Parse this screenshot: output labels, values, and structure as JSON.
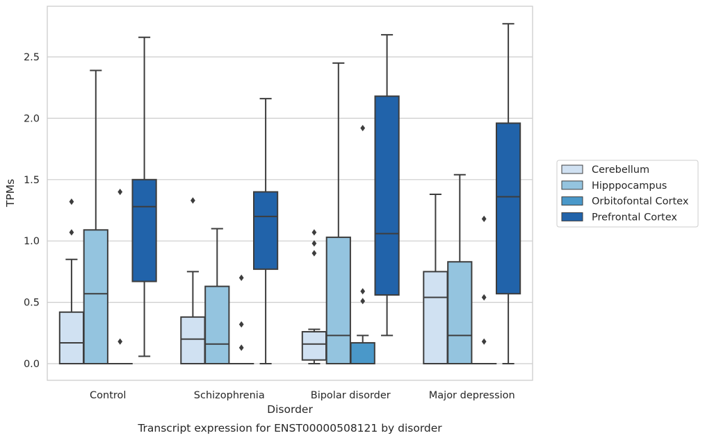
{
  "caption": "Transcript expression for ENST00000508121 by disorder",
  "chart_data": {
    "type": "box",
    "xlabel": "Disorder",
    "ylabel": "TPMs",
    "ylim": [
      -0.13,
      2.92
    ],
    "yticks": [
      0.0,
      0.5,
      1.0,
      1.5,
      2.0,
      2.5
    ],
    "ytick_labels": [
      "0.0",
      "0.5",
      "1.0",
      "1.5",
      "2.0",
      "2.5"
    ],
    "grid": "horizontal",
    "legend_position": "right",
    "categories": [
      "Control",
      "Schizophrenia",
      "Bipolar disorder",
      "Major depression"
    ],
    "series": [
      {
        "name": "Cerebellum",
        "color": "#d0e1f2",
        "boxes": [
          {
            "whislo": 0.0,
            "q1": 0.0,
            "med": 0.17,
            "q3": 0.42,
            "whishi": 0.85,
            "fliers": [
              1.07,
              1.32
            ]
          },
          {
            "whislo": 0.0,
            "q1": 0.0,
            "med": 0.2,
            "q3": 0.38,
            "whishi": 0.75,
            "fliers": [
              1.33
            ]
          },
          {
            "whislo": 0.0,
            "q1": 0.03,
            "med": 0.16,
            "q3": 0.26,
            "whishi": 0.28,
            "fliers": [
              0.9,
              0.98,
              1.07
            ]
          },
          {
            "whislo": 0.0,
            "q1": 0.0,
            "med": 0.54,
            "q3": 0.75,
            "whishi": 1.38,
            "fliers": []
          }
        ]
      },
      {
        "name": "Hipppocampus",
        "color": "#94c4df",
        "boxes": [
          {
            "whislo": 0.0,
            "q1": 0.0,
            "med": 0.57,
            "q3": 1.09,
            "whishi": 2.39,
            "fliers": []
          },
          {
            "whislo": 0.0,
            "q1": 0.0,
            "med": 0.16,
            "q3": 0.63,
            "whishi": 1.1,
            "fliers": []
          },
          {
            "whislo": 0.0,
            "q1": 0.0,
            "med": 0.23,
            "q3": 1.03,
            "whishi": 2.45,
            "fliers": []
          },
          {
            "whislo": 0.0,
            "q1": 0.0,
            "med": 0.23,
            "q3": 0.83,
            "whishi": 1.54,
            "fliers": []
          }
        ]
      },
      {
        "name": "Orbitofontal Cortex",
        "color": "#4a98c9",
        "boxes": [
          {
            "whislo": 0.0,
            "q1": 0.0,
            "med": 0.0,
            "q3": 0.0,
            "whishi": 0.0,
            "fliers": [
              0.18,
              1.4
            ]
          },
          {
            "whislo": 0.0,
            "q1": 0.0,
            "med": 0.0,
            "q3": 0.0,
            "whishi": 0.0,
            "fliers": [
              0.13,
              0.32,
              0.7
            ]
          },
          {
            "whislo": 0.0,
            "q1": 0.0,
            "med": 0.0,
            "q3": 0.17,
            "whishi": 0.23,
            "fliers": [
              0.51,
              0.59,
              1.92
            ]
          },
          {
            "whislo": 0.0,
            "q1": 0.0,
            "med": 0.0,
            "q3": 0.0,
            "whishi": 0.0,
            "fliers": [
              0.18,
              0.54,
              1.18
            ]
          }
        ]
      },
      {
        "name": "Prefrontal Cortex",
        "color": "#2163aa",
        "boxes": [
          {
            "whislo": 0.06,
            "q1": 0.67,
            "med": 1.28,
            "q3": 1.5,
            "whishi": 2.66,
            "fliers": []
          },
          {
            "whislo": 0.0,
            "q1": 0.77,
            "med": 1.2,
            "q3": 1.4,
            "whishi": 2.16,
            "fliers": []
          },
          {
            "whislo": 0.23,
            "q1": 0.56,
            "med": 1.06,
            "q3": 2.18,
            "whishi": 2.68,
            "fliers": []
          },
          {
            "whislo": 0.0,
            "q1": 0.57,
            "med": 1.36,
            "q3": 1.96,
            "whishi": 2.77,
            "fliers": []
          }
        ]
      }
    ]
  }
}
